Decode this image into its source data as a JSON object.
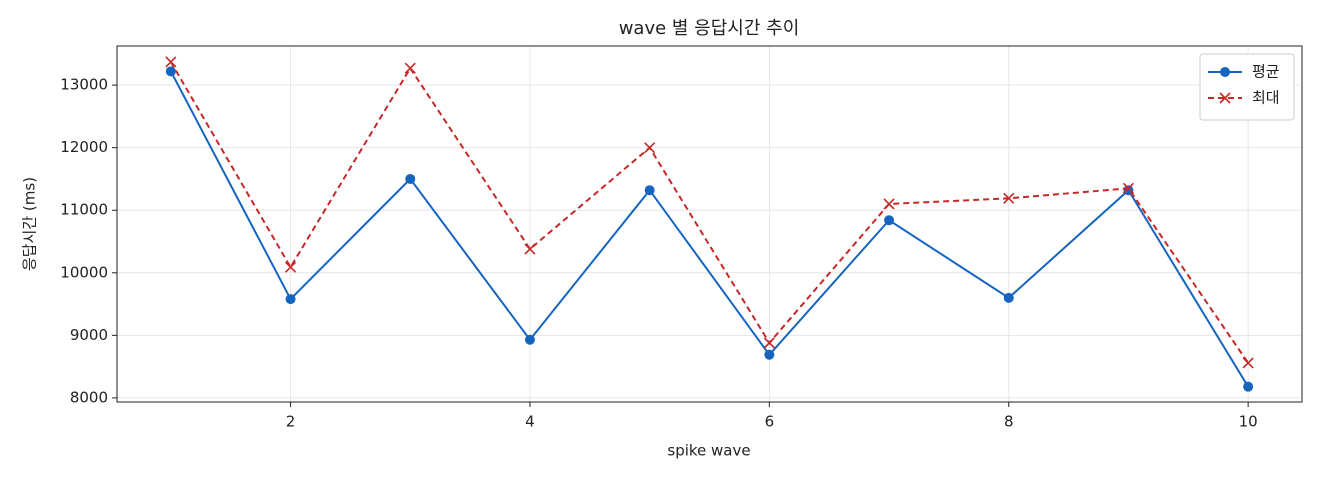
{
  "chart_data": {
    "type": "line",
    "title": "wave 별 응답시간 추이",
    "x_label": "spike wave",
    "y_label": "응답시간 (ms)",
    "x": [
      1,
      2,
      3,
      4,
      5,
      6,
      7,
      8,
      9,
      10
    ],
    "series": [
      {
        "name": "평균",
        "color": "#1565c0",
        "marker": "o",
        "dashed": false,
        "values": [
          13220,
          9580,
          11500,
          8930,
          11320,
          8690,
          10840,
          9600,
          11320,
          8180
        ]
      },
      {
        "name": "최대",
        "color": "#c62828",
        "marker": "x",
        "dashed": true,
        "values": [
          13370,
          10090,
          13270,
          10380,
          12000,
          8880,
          11100,
          11190,
          11350,
          8560
        ]
      }
    ],
    "xlim": [
      0.55,
      10.45
    ],
    "ylim": [
      7935,
      13625
    ],
    "xticks": [
      2,
      4,
      6,
      8,
      10
    ],
    "yticks": [
      8000,
      9000,
      10000,
      11000,
      12000,
      13000
    ],
    "grid": true,
    "legend": "upper right"
  }
}
